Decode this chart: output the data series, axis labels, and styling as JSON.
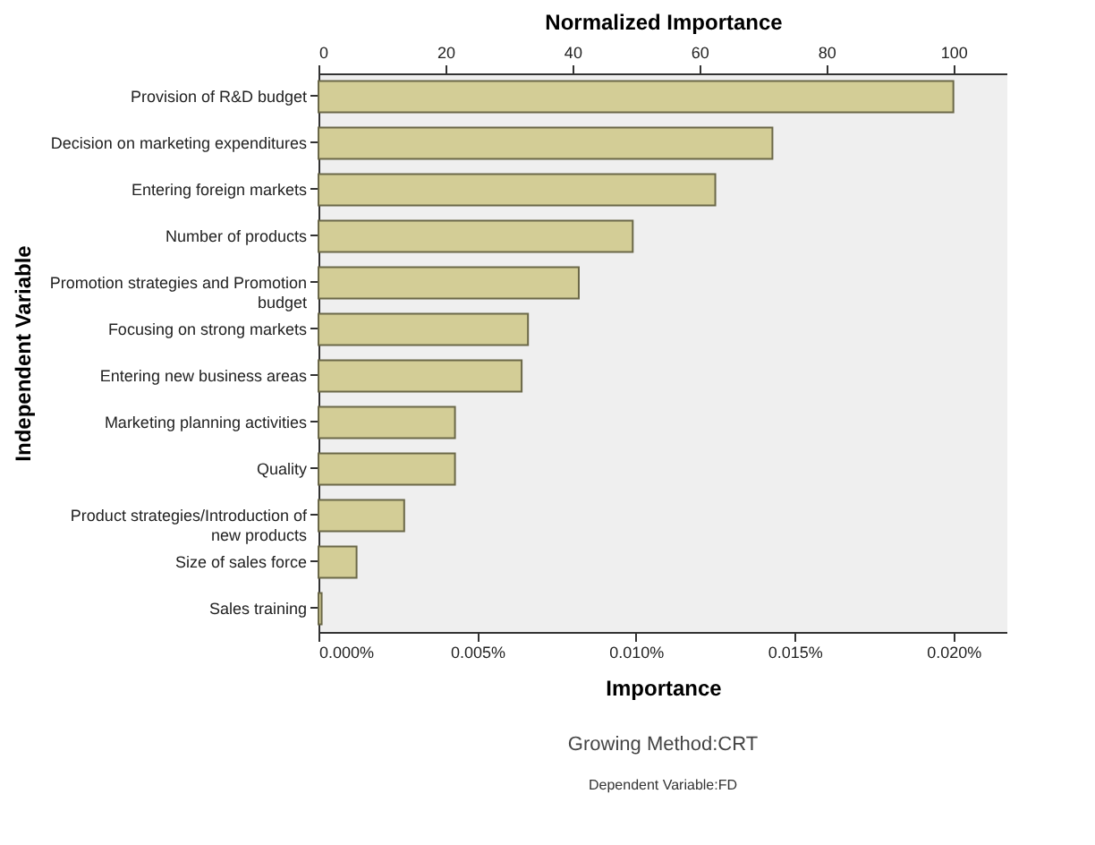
{
  "chart_data": {
    "type": "bar",
    "orientation": "horizontal",
    "xlabel": "Importance",
    "x2label": "Normalized Importance",
    "ylabel": "Independent Variable",
    "categories": [
      "Provision of R&D budget",
      "Decision on marketing expenditures",
      "Entering foreign markets",
      "Number of products",
      "Promotion strategies and Promotion budget",
      "Focusing on strong markets",
      "Entering new business areas",
      "Marketing planning activities",
      "Quality",
      "Product strategies/Introduction of new products",
      "Size of sales force",
      "Sales training"
    ],
    "values": [
      0.02,
      0.0143,
      0.0125,
      0.0099,
      0.0082,
      0.0066,
      0.0064,
      0.0043,
      0.0043,
      0.0027,
      0.0012,
      0.0001
    ],
    "color": "#d3cd96",
    "xlim": [
      0,
      0.0217
    ],
    "xticks": [
      {
        "value": 0,
        "label": "0.000%"
      },
      {
        "value": 0.005,
        "label": "0.005%"
      },
      {
        "value": 0.01,
        "label": "0.010%"
      },
      {
        "value": 0.015,
        "label": "0.015%"
      },
      {
        "value": 0.02,
        "label": "0.020%"
      }
    ],
    "x2lim": [
      0,
      108.5
    ],
    "x2ticks": [
      0,
      20,
      40,
      60,
      80,
      100
    ],
    "grid": false,
    "annotations": [
      "Growing Method:CRT",
      "Dependent Variable:FD"
    ]
  }
}
